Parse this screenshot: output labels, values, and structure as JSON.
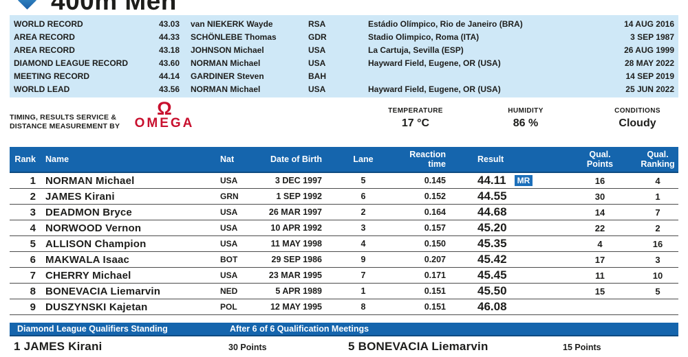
{
  "page": {
    "title": "400m Men"
  },
  "colors": {
    "header-blue": "#1565ad",
    "panel-blue": "#cfe8f7",
    "badge-blue": "#1c6fba",
    "omega-red": "#c8102e",
    "text-dark": "#1d1d1b"
  },
  "records": {
    "rows": [
      {
        "label": "WORLD RECORD",
        "result": "43.03",
        "athlete": "van NIEKERK Wayde",
        "nat": "RSA",
        "venue": "Estádio Olímpico, Rio de Janeiro (BRA)",
        "date": "14 AUG 2016"
      },
      {
        "label": "AREA RECORD",
        "result": "44.33",
        "athlete": "SCHÖNLEBE Thomas",
        "nat": "GDR",
        "venue": "Stadio Olimpico, Roma (ITA)",
        "date": "3 SEP 1987"
      },
      {
        "label": "AREA RECORD",
        "result": "43.18",
        "athlete": "JOHNSON Michael",
        "nat": "USA",
        "venue": "La Cartuja, Sevilla (ESP)",
        "date": "26 AUG 1999"
      },
      {
        "label": "DIAMOND LEAGUE RECORD",
        "result": "43.60",
        "athlete": "NORMAN Michael",
        "nat": "USA",
        "venue": "Hayward Field, Eugene, OR (USA)",
        "date": "28 MAY 2022"
      },
      {
        "label": "MEETING RECORD",
        "result": "44.14",
        "athlete": "GARDINER Steven",
        "nat": "BAH",
        "venue": "",
        "date": "14 SEP 2019"
      },
      {
        "label": "WORLD LEAD",
        "result": "43.56",
        "athlete": "NORMAN Michael",
        "nat": "USA",
        "venue": "Hayward Field, Eugene, OR (USA)",
        "date": "25 JUN 2022"
      }
    ]
  },
  "timing": {
    "provider_line1": "TIMING, RESULTS SERVICE &",
    "provider_line2": "DISTANCE MEASUREMENT BY",
    "logo_symbol": "Ω",
    "logo_text": "OMEGA"
  },
  "weather": {
    "temperature_label": "TEMPERATURE",
    "temperature_value": "17 °C",
    "humidity_label": "HUMIDITY",
    "humidity_value": "86 %",
    "conditions_label": "CONDITIONS",
    "conditions_value": "Cloudy"
  },
  "results": {
    "columns": [
      {
        "line1": "Rank",
        "line2": ""
      },
      {
        "line1": "Name",
        "line2": ""
      },
      {
        "line1": "Nat",
        "line2": ""
      },
      {
        "line1": "Date of Birth",
        "line2": ""
      },
      {
        "line1": "Lane",
        "line2": ""
      },
      {
        "line1": "Reaction",
        "line2": "time"
      },
      {
        "line1": "Result",
        "line2": ""
      },
      {
        "line1": "Qual.",
        "line2": "Points"
      },
      {
        "line1": "Qual.",
        "line2": "Ranking"
      }
    ],
    "rows": [
      {
        "rank": "1",
        "name": "NORMAN Michael",
        "nat": "USA",
        "dob": "3 DEC 1997",
        "lane": "5",
        "reaction": "0.145",
        "result": "44.11",
        "badge": "MR",
        "qual_points": "16",
        "qual_ranking": "4"
      },
      {
        "rank": "2",
        "name": "JAMES Kirani",
        "nat": "GRN",
        "dob": "1 SEP 1992",
        "lane": "6",
        "reaction": "0.152",
        "result": "44.55",
        "badge": "",
        "qual_points": "30",
        "qual_ranking": "1"
      },
      {
        "rank": "3",
        "name": "DEADMON Bryce",
        "nat": "USA",
        "dob": "26 MAR 1997",
        "lane": "2",
        "reaction": "0.164",
        "result": "44.68",
        "badge": "",
        "qual_points": "14",
        "qual_ranking": "7"
      },
      {
        "rank": "4",
        "name": "NORWOOD Vernon",
        "nat": "USA",
        "dob": "10 APR 1992",
        "lane": "3",
        "reaction": "0.157",
        "result": "45.20",
        "badge": "",
        "qual_points": "22",
        "qual_ranking": "2"
      },
      {
        "rank": "5",
        "name": "ALLISON Champion",
        "nat": "USA",
        "dob": "11 MAY 1998",
        "lane": "4",
        "reaction": "0.150",
        "result": "45.35",
        "badge": "",
        "qual_points": "4",
        "qual_ranking": "16"
      },
      {
        "rank": "6",
        "name": "MAKWALA Isaac",
        "nat": "BOT",
        "dob": "29 SEP 1986",
        "lane": "9",
        "reaction": "0.207",
        "result": "45.42",
        "badge": "",
        "qual_points": "17",
        "qual_ranking": "3"
      },
      {
        "rank": "7",
        "name": "CHERRY Michael",
        "nat": "USA",
        "dob": "23 MAR 1995",
        "lane": "7",
        "reaction": "0.171",
        "result": "45.45",
        "badge": "",
        "qual_points": "11",
        "qual_ranking": "10"
      },
      {
        "rank": "8",
        "name": "BONEVACIA Liemarvin",
        "nat": "NED",
        "dob": "5 APR 1989",
        "lane": "1",
        "reaction": "0.151",
        "result": "45.50",
        "badge": "",
        "qual_points": "15",
        "qual_ranking": "5"
      },
      {
        "rank": "9",
        "name": "DUSZYNSKI Kajetan",
        "nat": "POL",
        "dob": "12 MAY 1995",
        "lane": "8",
        "reaction": "0.151",
        "result": "46.08",
        "badge": "",
        "qual_points": "",
        "qual_ranking": ""
      }
    ]
  },
  "qualifiers": {
    "title": "Diamond League Qualifiers Standing",
    "subtitle": "After 6 of 6 Qualification Meetings",
    "entries": [
      {
        "rank": "1",
        "name": "JAMES Kirani",
        "points": "30 Points"
      },
      {
        "rank": "5",
        "name": "BONEVACIA Liemarvin",
        "points": "15 Points"
      }
    ]
  }
}
